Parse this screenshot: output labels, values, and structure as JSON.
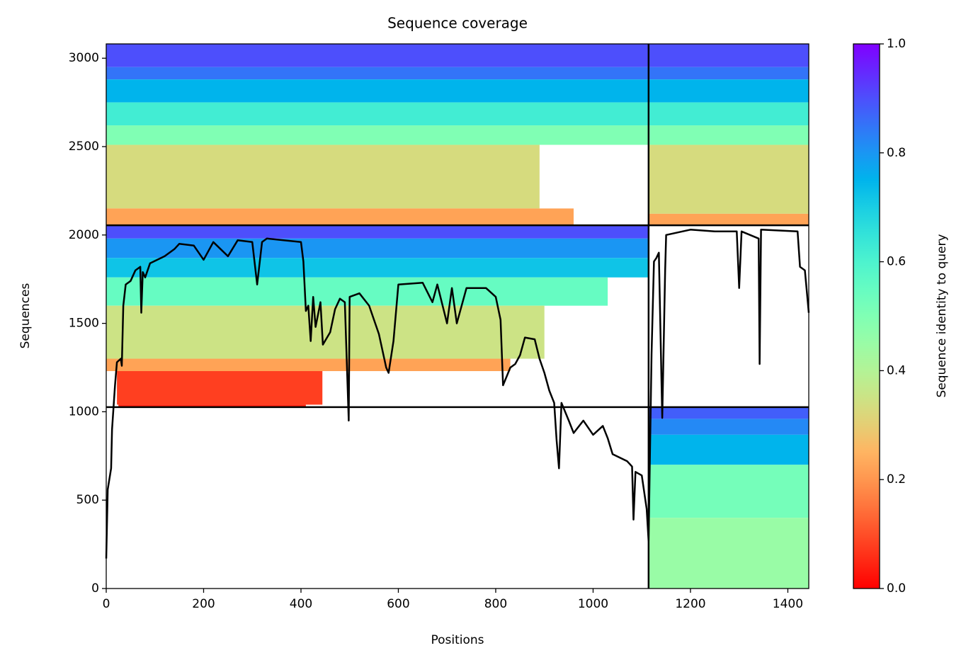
{
  "chart_data": {
    "type": "heatmap",
    "title": "Sequence coverage",
    "x_label": "Positions",
    "y_label": "Sequences",
    "xlim": [
      0,
      1443
    ],
    "ylim": [
      0,
      3081
    ],
    "xticks": [
      0,
      200,
      400,
      600,
      800,
      1000,
      1200,
      1400
    ],
    "yticks": [
      0,
      500,
      1000,
      1500,
      2000,
      2500,
      3000
    ],
    "colormap": "rainbow_r",
    "colorbar": {
      "label": "Sequence identity to query",
      "lim": [
        0,
        1
      ],
      "ticks": [
        {
          "value": 0,
          "label": "0.0"
        },
        {
          "value": 0.2,
          "label": "0.2"
        },
        {
          "value": 0.4,
          "label": "0.4"
        },
        {
          "value": 0.6,
          "label": "0.6"
        },
        {
          "value": 0.8,
          "label": "0.8"
        },
        {
          "value": 1,
          "label": "1.0"
        }
      ]
    },
    "chain_breaks_x": [
      1114
    ],
    "chain_breaks_y": [
      1026,
      2055
    ],
    "bands": [
      {
        "x": [
          0,
          1114
        ],
        "y": [
          2950,
          3081
        ],
        "identity": 0.9
      },
      {
        "x": [
          0,
          1114
        ],
        "y": [
          2880,
          2950
        ],
        "identity": 0.85
      },
      {
        "x": [
          0,
          1114
        ],
        "y": [
          2750,
          2880
        ],
        "identity": 0.75
      },
      {
        "x": [
          0,
          1114
        ],
        "y": [
          2620,
          2750
        ],
        "identity": 0.62
      },
      {
        "x": [
          0,
          1114
        ],
        "y": [
          2510,
          2620
        ],
        "identity": 0.5
      },
      {
        "x": [
          0,
          890
        ],
        "y": [
          2150,
          2510
        ],
        "identity": 0.33
      },
      {
        "x": [
          0,
          960
        ],
        "y": [
          2055,
          2150
        ],
        "identity": 0.22
      },
      {
        "x": [
          1114,
          1443
        ],
        "y": [
          2950,
          3081
        ],
        "identity": 0.9
      },
      {
        "x": [
          1114,
          1443
        ],
        "y": [
          2880,
          2950
        ],
        "identity": 0.85
      },
      {
        "x": [
          1114,
          1443
        ],
        "y": [
          2750,
          2880
        ],
        "identity": 0.75
      },
      {
        "x": [
          1114,
          1443
        ],
        "y": [
          2620,
          2750
        ],
        "identity": 0.62
      },
      {
        "x": [
          1114,
          1443
        ],
        "y": [
          2510,
          2620
        ],
        "identity": 0.5
      },
      {
        "x": [
          1114,
          1443
        ],
        "y": [
          2120,
          2510
        ],
        "identity": 0.33
      },
      {
        "x": [
          1114,
          1443
        ],
        "y": [
          2055,
          2120
        ],
        "identity": 0.22
      },
      {
        "x": [
          0,
          1114
        ],
        "y": [
          1980,
          2055
        ],
        "identity": 0.9
      },
      {
        "x": [
          0,
          1114
        ],
        "y": [
          1870,
          1980
        ],
        "identity": 0.8
      },
      {
        "x": [
          0,
          1114
        ],
        "y": [
          1760,
          1870
        ],
        "identity": 0.72
      },
      {
        "x": [
          0,
          1030
        ],
        "y": [
          1600,
          1760
        ],
        "identity": 0.55
      },
      {
        "x": [
          0,
          900
        ],
        "y": [
          1300,
          1600
        ],
        "identity": 0.35
      },
      {
        "x": [
          0,
          830
        ],
        "y": [
          1230,
          1300
        ],
        "identity": 0.22
      },
      {
        "x": [
          22,
          444
        ],
        "y": [
          1040,
          1230
        ],
        "identity": 0.08
      },
      {
        "x": [
          25,
          410
        ],
        "y": [
          1026,
          1040
        ],
        "identity": 0.05
      },
      {
        "x": [
          1114,
          1443
        ],
        "y": [
          960,
          1026
        ],
        "identity": 0.88
      },
      {
        "x": [
          1114,
          1443
        ],
        "y": [
          870,
          960
        ],
        "identity": 0.82
      },
      {
        "x": [
          1114,
          1443
        ],
        "y": [
          700,
          870
        ],
        "identity": 0.75
      },
      {
        "x": [
          1114,
          1443
        ],
        "y": [
          400,
          700
        ],
        "identity": 0.52
      },
      {
        "x": [
          1114,
          1443
        ],
        "y": [
          0,
          400
        ],
        "identity": 0.45
      }
    ],
    "coverage": {
      "color": "#000000",
      "x": [
        0,
        3,
        10,
        12,
        18,
        22,
        30,
        32,
        35,
        40,
        50,
        60,
        70,
        72,
        75,
        80,
        90,
        120,
        140,
        150,
        180,
        200,
        220,
        250,
        270,
        300,
        310,
        320,
        330,
        400,
        405,
        410,
        415,
        420,
        425,
        430,
        440,
        445,
        460,
        470,
        480,
        490,
        498,
        500,
        520,
        540,
        560,
        575,
        580,
        590,
        600,
        650,
        670,
        680,
        700,
        710,
        720,
        740,
        780,
        800,
        810,
        815,
        830,
        840,
        850,
        860,
        880,
        890,
        900,
        910,
        920,
        925,
        930,
        935,
        950,
        960,
        980,
        1000,
        1020,
        1030,
        1040,
        1070,
        1080,
        1083,
        1087,
        1100,
        1110,
        1114,
        1120,
        1125,
        1130,
        1135,
        1142,
        1148,
        1150,
        1200,
        1250,
        1295,
        1300,
        1305,
        1340,
        1342,
        1345,
        1420,
        1425,
        1435,
        1443
      ],
      "values": [
        170,
        560,
        680,
        900,
        1150,
        1280,
        1300,
        1260,
        1600,
        1720,
        1740,
        1800,
        1820,
        1560,
        1790,
        1760,
        1840,
        1880,
        1920,
        1950,
        1940,
        1860,
        1960,
        1880,
        1970,
        1960,
        1720,
        1960,
        1980,
        1960,
        1850,
        1570,
        1600,
        1400,
        1650,
        1480,
        1620,
        1380,
        1450,
        1580,
        1640,
        1620,
        950,
        1650,
        1670,
        1600,
        1440,
        1250,
        1220,
        1400,
        1720,
        1730,
        1620,
        1720,
        1500,
        1700,
        1500,
        1700,
        1700,
        1650,
        1520,
        1150,
        1250,
        1270,
        1320,
        1420,
        1410,
        1300,
        1220,
        1120,
        1050,
        840,
        680,
        1050,
        950,
        880,
        950,
        870,
        920,
        850,
        760,
        720,
        690,
        390,
        660,
        640,
        450,
        270,
        1326,
        1850,
        1870,
        1900,
        965,
        1800,
        2000,
        2030,
        2020,
        2020,
        1700,
        2020,
        1980,
        1270,
        2030,
        2020,
        1820,
        1800,
        1560
      ]
    }
  }
}
